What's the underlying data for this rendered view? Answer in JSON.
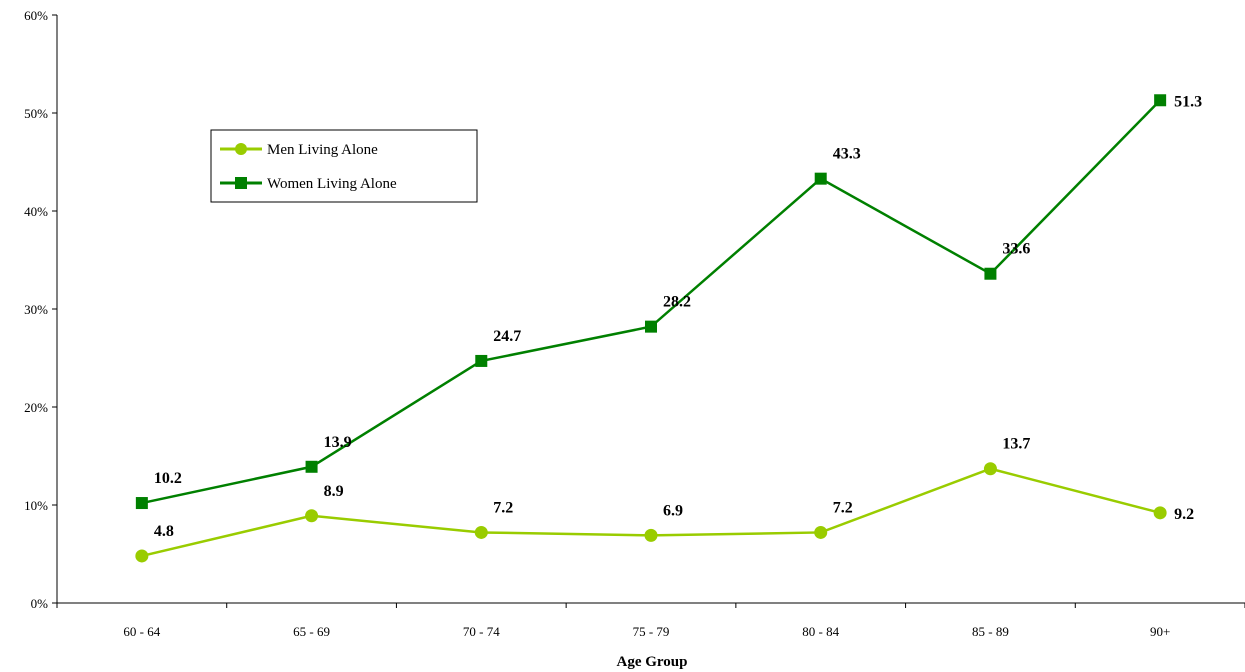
{
  "chart_data": {
    "type": "line",
    "title": "",
    "xlabel": "Age Group",
    "ylabel": "",
    "categories": [
      "60 - 64",
      "65 - 69",
      "70 - 74",
      "75 - 79",
      "80 - 84",
      "85 - 89",
      "90+"
    ],
    "y_ticks": [
      "0%",
      "10%",
      "20%",
      "30%",
      "40%",
      "50%",
      "60%"
    ],
    "ylim": [
      0,
      60
    ],
    "grid": false,
    "legend_position": "upper-left inside plot",
    "series": [
      {
        "name": "Men Living Alone",
        "marker": "circle",
        "color": "#99cc00",
        "values": [
          4.8,
          8.9,
          7.2,
          6.9,
          7.2,
          13.7,
          9.2
        ],
        "labels": [
          "4.8",
          "8.9",
          "7.2",
          "6.9",
          "7.2",
          "13.7",
          "9.2"
        ]
      },
      {
        "name": "Women Living Alone",
        "marker": "square",
        "color": "#008000",
        "values": [
          10.2,
          13.9,
          24.7,
          28.2,
          43.3,
          33.6,
          51.3
        ],
        "labels": [
          "10.2",
          "13.9",
          "24.7",
          "28.2",
          "43.3",
          "33.6",
          "51.3"
        ]
      }
    ]
  }
}
